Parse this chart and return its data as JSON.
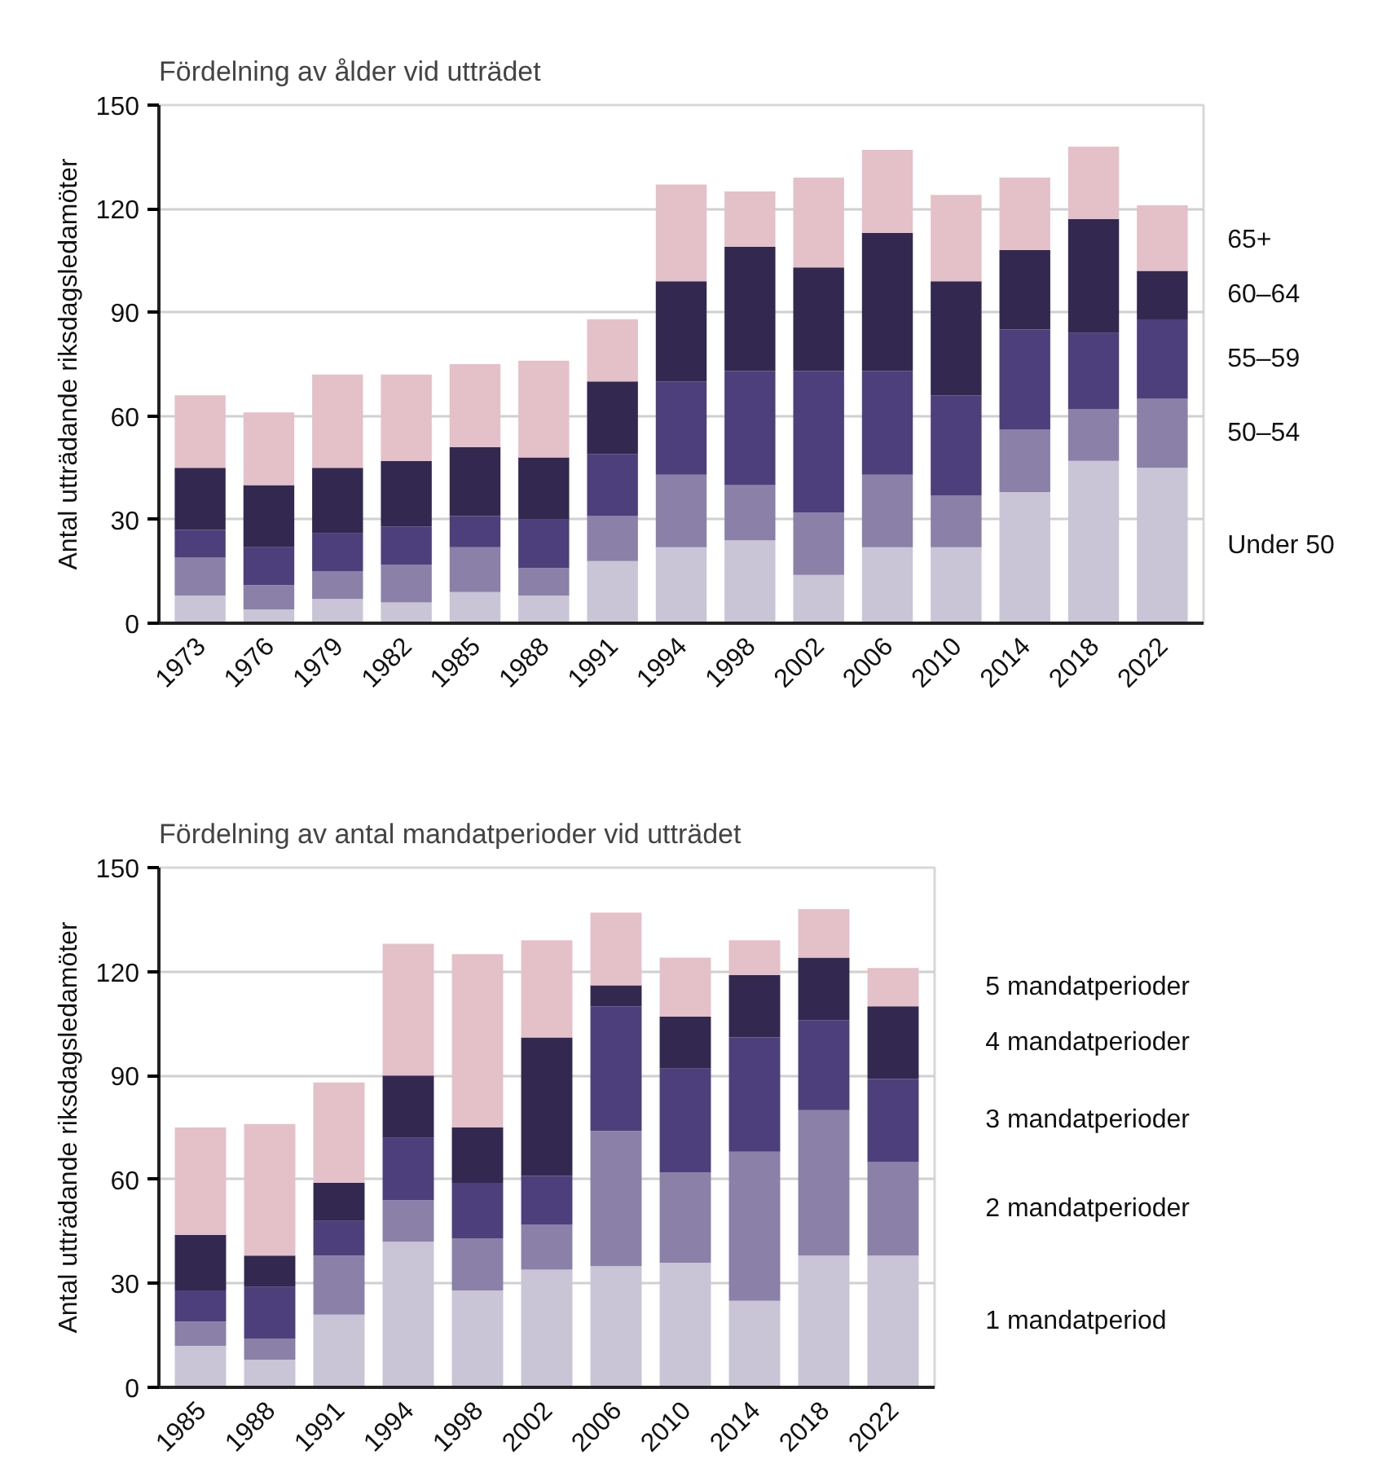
{
  "chart_data": [
    {
      "type": "bar",
      "stacked": true,
      "title": "Fördelning av ålder vid utträdet",
      "ylabel": "Antal utträdande riksdagsledamöter",
      "categories": [
        "1973",
        "1976",
        "1979",
        "1982",
        "1985",
        "1988",
        "1991",
        "1994",
        "1998",
        "2002",
        "2006",
        "2010",
        "2014",
        "2018",
        "2022"
      ],
      "ylim": [
        0,
        150
      ],
      "yticks": [
        0,
        30,
        60,
        90,
        120,
        150
      ],
      "grid": "y",
      "series": [
        {
          "name": "Under 50",
          "color": "#c9c4d6",
          "values": [
            8,
            4,
            7,
            6,
            9,
            8,
            18,
            22,
            24,
            14,
            22,
            22,
            38,
            47,
            45
          ]
        },
        {
          "name": "50–54",
          "color": "#8b80a8",
          "values": [
            11,
            7,
            8,
            11,
            13,
            8,
            13,
            21,
            16,
            18,
            21,
            15,
            18,
            15,
            20
          ]
        },
        {
          "name": "55–59",
          "color": "#4d3f7b",
          "values": [
            8,
            11,
            11,
            11,
            9,
            14,
            18,
            27,
            33,
            41,
            30,
            29,
            29,
            22,
            23
          ]
        },
        {
          "name": "60–64",
          "color": "#33284f",
          "values": [
            18,
            18,
            19,
            19,
            20,
            18,
            21,
            29,
            36,
            30,
            40,
            33,
            23,
            33,
            14
          ]
        },
        {
          "name": "65+",
          "color": "#e4c0c9",
          "values": [
            21,
            21,
            27,
            25,
            24,
            28,
            18,
            28,
            16,
            26,
            24,
            25,
            21,
            21,
            19
          ]
        }
      ]
    },
    {
      "type": "bar",
      "stacked": true,
      "title": "Fördelning av antal mandatperioder vid utträdet",
      "ylabel": "Antal utträdande riksdagsledamöter",
      "categories": [
        "1985",
        "1988",
        "1991",
        "1994",
        "1998",
        "2002",
        "2006",
        "2010",
        "2014",
        "2018",
        "2022"
      ],
      "ylim": [
        0,
        150
      ],
      "yticks": [
        0,
        30,
        60,
        90,
        120,
        150
      ],
      "grid": "y",
      "series": [
        {
          "name": "1 mandatperiod",
          "color": "#c9c4d6",
          "values": [
            12,
            8,
            21,
            42,
            28,
            34,
            35,
            36,
            25,
            38,
            38
          ]
        },
        {
          "name": "2 mandatperioder",
          "color": "#8b80a8",
          "values": [
            7,
            6,
            17,
            12,
            15,
            13,
            39,
            26,
            43,
            42,
            27
          ]
        },
        {
          "name": "3 mandatperioder",
          "color": "#4d3f7b",
          "values": [
            9,
            15,
            10,
            18,
            16,
            14,
            36,
            30,
            33,
            26,
            24
          ]
        },
        {
          "name": "4 mandatperioder",
          "color": "#33284f",
          "values": [
            16,
            9,
            11,
            18,
            16,
            40,
            6,
            15,
            18,
            18,
            21
          ]
        },
        {
          "name": "5 mandatperioder",
          "color": "#e4c0c9",
          "values": [
            31,
            38,
            29,
            38,
            50,
            28,
            21,
            17,
            10,
            14,
            11
          ]
        }
      ]
    }
  ]
}
